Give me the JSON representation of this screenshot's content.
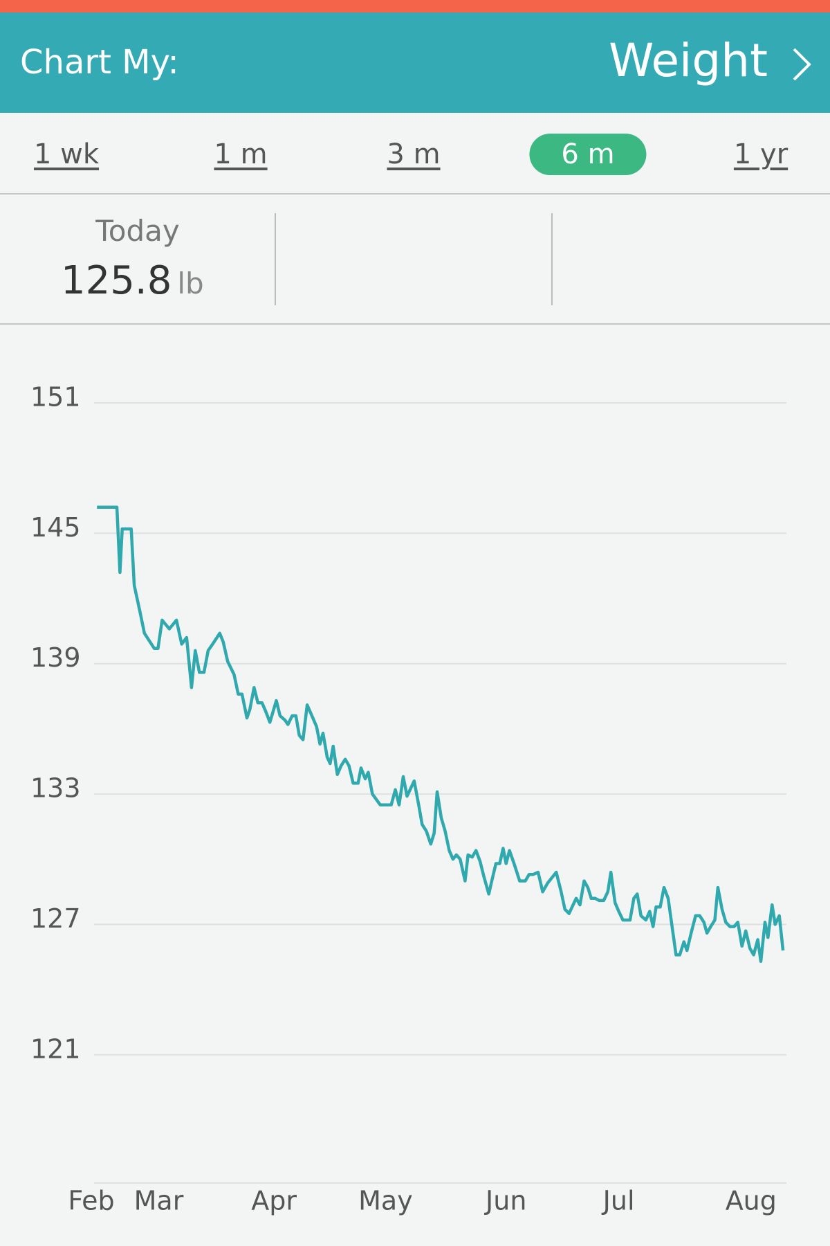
{
  "header": {
    "label": "Chart My:",
    "metric": "Weight"
  },
  "tabs": [
    {
      "label": "1 wk",
      "selected": false
    },
    {
      "label": "1 m",
      "selected": false
    },
    {
      "label": "3 m",
      "selected": false
    },
    {
      "label": "6 m",
      "selected": true
    },
    {
      "label": "1 yr",
      "selected": false
    }
  ],
  "summary": {
    "label": "Today",
    "value": 125.8,
    "unit": "lb"
  },
  "chart_data": {
    "type": "line",
    "color": "#2fa9ae",
    "grid": true,
    "x": [
      0,
      5.3,
      6.1,
      6.7,
      9.1,
      9.9,
      11.4,
      12.6,
      15.2,
      16.2,
      17.3,
      19.2,
      21.1,
      22.5,
      23.8,
      25.1,
      26.1,
      27.2,
      28.4,
      29.5,
      30.7,
      32.6,
      33.5,
      34.7,
      36.4,
      37.5,
      38.5,
      39.8,
      40.6,
      41.7,
      42.7,
      43.8,
      44.8,
      45.9,
      47.6,
      48.6,
      49.9,
      50.7,
      51.8,
      52.8,
      53.7,
      54.7,
      55.8,
      57.3,
      58.3,
      59.2,
      60.0,
      61.1,
      61.9,
      62.7,
      63.8,
      64.8,
      65.9,
      66.9,
      68.0,
      69.3,
      70.1,
      71.2,
      72.0,
      73.1,
      75.2,
      78.1,
      79.2,
      80.2,
      81.3,
      82.3,
      84.2,
      85.5,
      86.3,
      87.4,
      88.6,
      89.5,
      90.3,
      91.4,
      92.4,
      93.5,
      94.5,
      95.4,
      96.4,
      97.7,
      98.5,
      99.6,
      100.6,
      101.7,
      102.7,
      104.0,
      104.8,
      105.9,
      106.9,
      107.8,
      108.6,
      109.5,
      110.7,
      112.2,
      113.7,
      114.7,
      115.8,
      117.1,
      118.3,
      119.6,
      121.9,
      123.2,
      124.2,
      125.3,
      126.1,
      127.2,
      128.2,
      129.3,
      130.3,
      131.2,
      132.2,
      133.3,
      134.5,
      135.6,
      136.4,
      137.5,
      138.5,
      139.6,
      141.5,
      142.5,
      143.4,
      144.4,
      145.7,
      146.7,
      147.6,
      148.4,
      149.5,
      150.5,
      151.6,
      153.7,
      154.7,
      155.8,
      156.6,
      157.7,
      158.9,
      160.0,
      161.1,
      161.9,
      162.9,
      164.0,
      164.8,
      165.9,
      166.9,
      168.0,
      169.1,
      170.1,
      171.2,
      172.2,
      173.3,
      174.3,
      175.4,
      176.2,
      177.3,
      178.1,
      179.2,
      180.0,
      181.1,
      182.1
    ],
    "values": [
      146.2,
      146.2,
      143.2,
      145.2,
      145.2,
      142.6,
      141.4,
      140.4,
      139.7,
      139.7,
      141.0,
      140.6,
      141.0,
      139.9,
      140.2,
      137.9,
      139.6,
      138.6,
      138.6,
      139.6,
      139.9,
      140.4,
      140.0,
      139.1,
      138.5,
      137.6,
      137.6,
      136.5,
      136.9,
      137.9,
      137.2,
      137.2,
      136.8,
      136.3,
      137.3,
      136.6,
      136.4,
      136.2,
      136.6,
      136.6,
      135.7,
      135.5,
      137.1,
      136.5,
      136.1,
      135.3,
      135.8,
      134.7,
      134.4,
      135.2,
      133.9,
      134.3,
      134.6,
      134.3,
      133.5,
      133.5,
      134.2,
      133.7,
      134.0,
      133.0,
      132.5,
      132.5,
      133.2,
      132.5,
      133.8,
      132.9,
      133.6,
      132.4,
      131.6,
      131.3,
      130.7,
      131.2,
      133.1,
      131.9,
      131.3,
      130.4,
      130.0,
      130.2,
      130.0,
      129.0,
      130.2,
      130.1,
      130.4,
      129.9,
      129.2,
      128.4,
      129.0,
      129.8,
      129.8,
      130.5,
      129.8,
      130.4,
      129.8,
      129.0,
      129.0,
      129.3,
      129.3,
      129.4,
      128.5,
      128.9,
      129.4,
      128.5,
      127.7,
      127.5,
      127.8,
      128.2,
      127.9,
      129.0,
      128.7,
      128.2,
      128.2,
      128.1,
      128.1,
      128.5,
      129.4,
      128.0,
      127.6,
      127.2,
      127.2,
      128.2,
      128.4,
      127.4,
      127.2,
      127.6,
      126.9,
      127.8,
      127.8,
      128.7,
      128.2,
      125.6,
      125.6,
      126.2,
      125.8,
      126.6,
      127.4,
      127.4,
      127.1,
      126.6,
      126.9,
      127.2,
      128.7,
      127.7,
      127.1,
      126.9,
      126.9,
      127.1,
      126.0,
      126.7,
      125.9,
      125.6,
      126.3,
      125.3,
      127.1,
      126.4,
      127.9,
      127.0,
      127.4,
      125.8
    ],
    "xlim": [
      -1.5,
      183
    ],
    "ylim": [
      115.1,
      151
    ],
    "xticks": [
      {
        "value": -1.5,
        "label": "Feb"
      },
      {
        "value": 16.4,
        "label": "Mar"
      },
      {
        "value": 47.0,
        "label": "Apr"
      },
      {
        "value": 76.6,
        "label": "May"
      },
      {
        "value": 108.6,
        "label": "Jun"
      },
      {
        "value": 138.5,
        "label": "Jul"
      },
      {
        "value": 173.6,
        "label": "Aug"
      }
    ],
    "yticks": [
      121,
      127,
      133,
      139,
      145,
      151
    ]
  }
}
